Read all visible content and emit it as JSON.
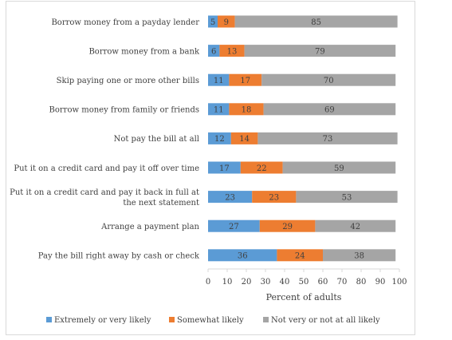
{
  "chart_data": {
    "type": "bar",
    "stacked": true,
    "orientation": "horizontal",
    "categories": [
      "Borrow money from a payday lender",
      "Borrow money from a bank",
      "Skip paying one or more other bills",
      "Borrow money from family or friends",
      "Not pay the bill at all",
      "Put it on a credit card and pay it off over time",
      "Put it on a credit card and pay it back in full at the next statement",
      "Arrange a payment plan",
      "Pay the bill right away by cash or check"
    ],
    "category_lines": [
      [
        "Borrow money from a payday lender"
      ],
      [
        "Borrow money from a bank"
      ],
      [
        "Skip paying one or more other bills"
      ],
      [
        "Borrow money from family or friends"
      ],
      [
        "Not pay the bill at all"
      ],
      [
        "Put it on a credit card and pay it off over time"
      ],
      [
        "Put it on a credit card and pay it back in full at",
        "the next statement"
      ],
      [
        "Arrange a payment plan"
      ],
      [
        "Pay the bill right away by cash or check"
      ]
    ],
    "series": [
      {
        "name": "Extremely or very likely",
        "color": "#5b9bd5",
        "values": [
          5,
          6,
          11,
          11,
          12,
          17,
          23,
          27,
          36
        ]
      },
      {
        "name": "Somewhat likely",
        "color": "#ed7d31",
        "values": [
          9,
          13,
          17,
          18,
          14,
          22,
          23,
          29,
          24
        ]
      },
      {
        "name": "Not very or not at all likely",
        "color": "#a5a5a5",
        "values": [
          85,
          79,
          70,
          69,
          73,
          59,
          53,
          42,
          38
        ]
      }
    ],
    "xlabel": "Percent of adults",
    "xlim": [
      0,
      100
    ],
    "xticks": [
      0,
      10,
      20,
      30,
      40,
      50,
      60,
      70,
      80,
      90,
      100
    ],
    "legend_position": "bottom",
    "grid": false
  }
}
